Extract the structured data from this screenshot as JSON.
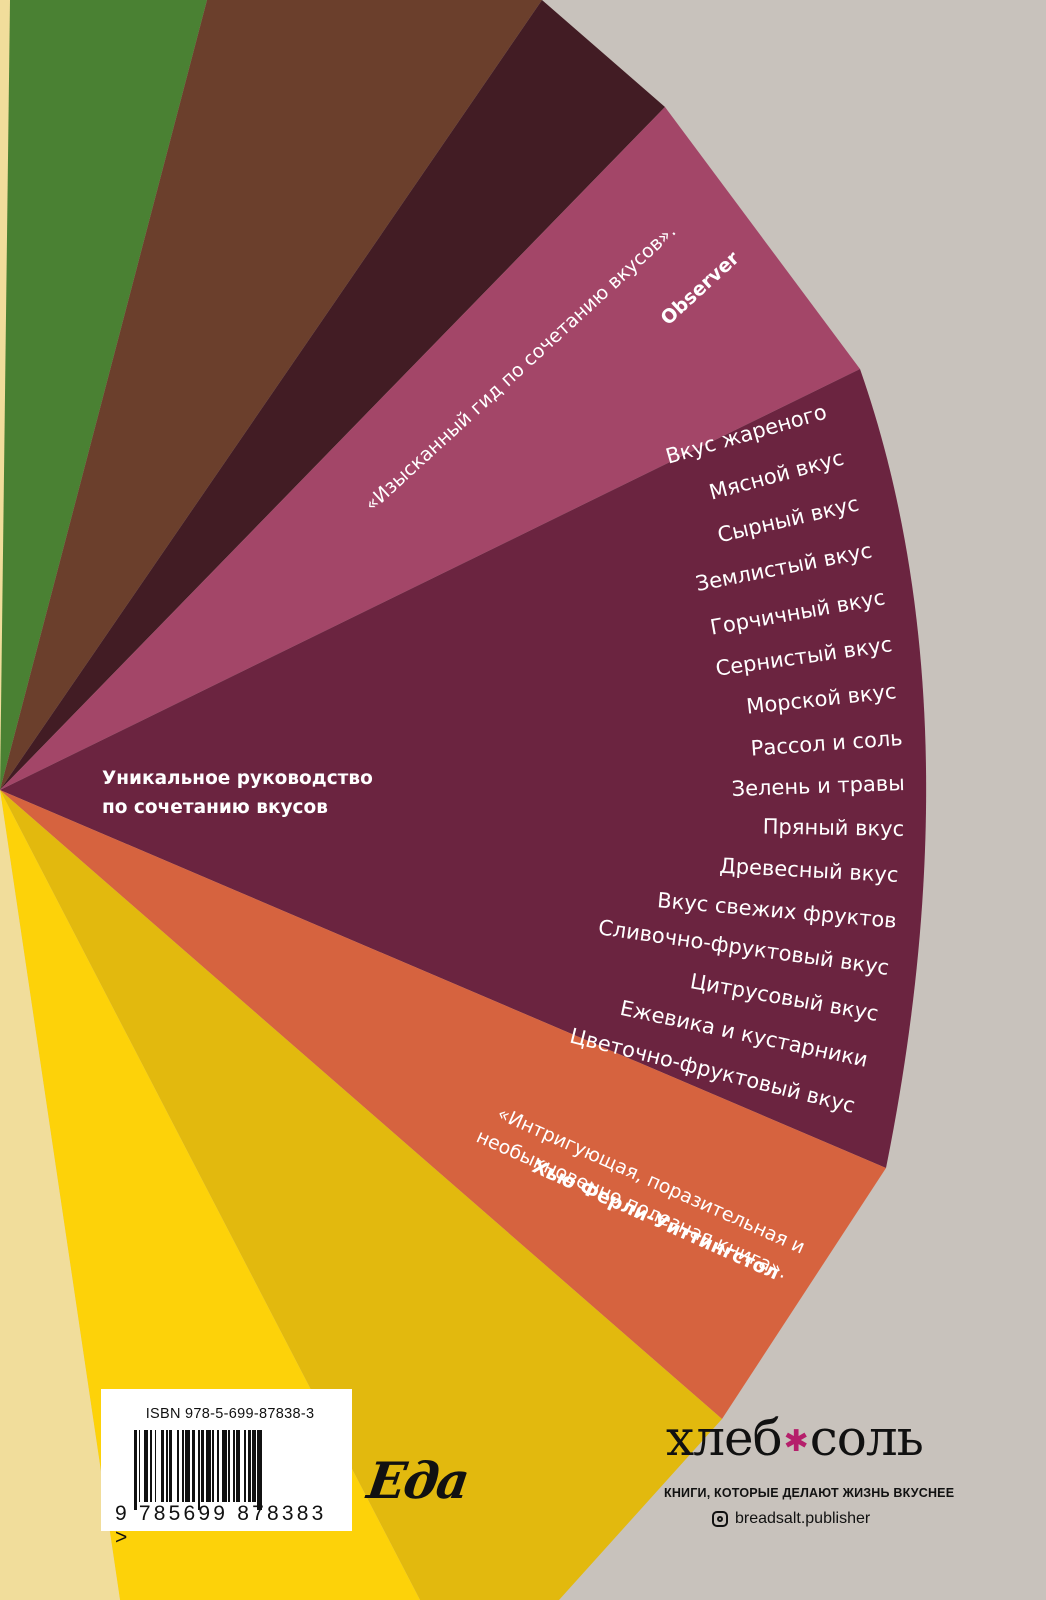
{
  "colors": {
    "background": "#c8c2bc",
    "segments": [
      "#f1dd9b",
      "#4a8133",
      "#6b3f2c",
      "#421c24",
      "#a34668",
      "#6b2440",
      "#d6633f",
      "#e2b90e",
      "#fdd209",
      "#f1dd9b"
    ]
  },
  "quote_top": {
    "text": "«Изысканный гид по сочетанию вкусов».",
    "source": "Observer"
  },
  "tagline": {
    "line1": "Уникальное руководство",
    "line2": "по сочетанию вкусов"
  },
  "flavors": [
    "Вкус жареного",
    "Мясной вкус",
    "Сырный вкус",
    "Землистый вкус",
    "Горчичный вкус",
    "Сернистый вкус",
    "Морской вкус",
    "Рассол и соль",
    "Зелень и травы",
    "Пряный вкус",
    "Древесный вкус",
    "Вкус свежих фруктов",
    "Сливочно-фруктовый вкус",
    "Цитрусовый вкус",
    "Ежевика и кустарники",
    "Цветочно-фруктовый вкус"
  ],
  "quote_bottom": {
    "line1": "«Интригующая, поразительная и",
    "line2": "необыкновенно полезная книга».",
    "source": "Хью Ферли-Уиттингстол"
  },
  "barcode": {
    "isbn": "ISBN 978-5-699-87838-3",
    "ean": "9 785699 878383 >"
  },
  "series_logo": "Еда",
  "publisher": {
    "name_part1": "хлеб",
    "name_part2": "соль",
    "slogan": "КНИГИ, КОТОРЫЕ ДЕЛАЮТ ЖИЗНЬ ВКУСНЕЕ",
    "social": "breadsalt.publisher",
    "icon": "instagram-icon"
  }
}
